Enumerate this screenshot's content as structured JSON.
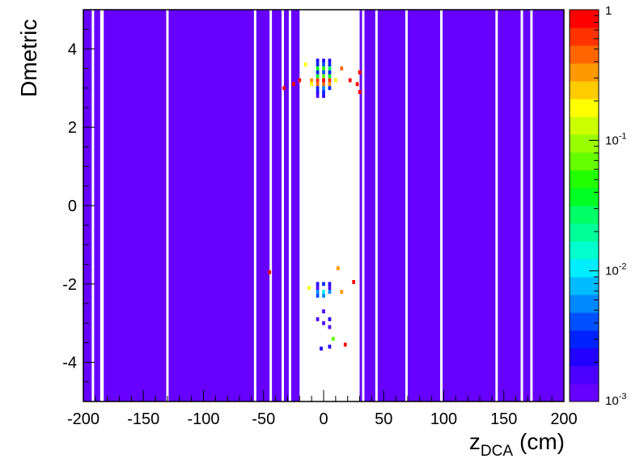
{
  "chart_data": {
    "type": "heatmap",
    "title": "",
    "xlabel": "z",
    "xlabel_sub": "DCA",
    "xlabel_unit": "(cm)",
    "ylabel": "Dmetric",
    "xlim": [
      -200,
      200
    ],
    "ylim": [
      -5,
      5
    ],
    "x_ticks": [
      -200,
      -150,
      -100,
      -50,
      0,
      50,
      100,
      150,
      200
    ],
    "y_ticks": [
      -4,
      -2,
      0,
      2,
      4
    ],
    "grid": false,
    "z_scale": "log",
    "zlim": [
      0.001,
      1
    ],
    "colorbar_labels": [
      {
        "base": "10",
        "exp": "-3",
        "value": 0.001
      },
      {
        "base": "10",
        "exp": "-2",
        "value": 0.01
      },
      {
        "base": "10",
        "exp": "-1",
        "value": 0.1
      },
      {
        "base": "1",
        "exp": "",
        "value": 1
      }
    ],
    "colorbar_colors": [
      "#6600ff",
      "#4a00ff",
      "#2200ff",
      "#0022ff",
      "#0050ff",
      "#0088ff",
      "#00bbff",
      "#00eeff",
      "#00ffcc",
      "#00ff99",
      "#00ff66",
      "#00ff22",
      "#22ff00",
      "#66ff00",
      "#99ff00",
      "#ccff00",
      "#ffff00",
      "#ffcc00",
      "#ff9900",
      "#ff6600",
      "#ff3300",
      "#ff0000"
    ],
    "background_fill": {
      "value": 0.001,
      "color": "#6600ff",
      "x_range": [
        -200,
        200
      ],
      "y_range": [
        -5,
        5
      ]
    },
    "empty_bands": [
      {
        "x0": -193,
        "x1": -191
      },
      {
        "x0": -186,
        "x1": -183
      },
      {
        "x0": -131,
        "x1": -129
      },
      {
        "x0": -58,
        "x1": -56
      },
      {
        "x0": -45,
        "x1": -43
      },
      {
        "x0": -35,
        "x1": -33
      },
      {
        "x0": -29,
        "x1": -27
      },
      {
        "x0": -20,
        "x1": 30
      },
      {
        "x0": 32,
        "x1": 34
      },
      {
        "x0": 43,
        "x1": 45
      },
      {
        "x0": 68,
        "x1": 70
      },
      {
        "x0": 97,
        "x1": 99
      },
      {
        "x0": 143,
        "x1": 145
      },
      {
        "x0": 164,
        "x1": 166
      },
      {
        "x0": 172,
        "x1": 174
      }
    ],
    "cells": [
      {
        "x": -5,
        "y": 3.7,
        "v": 0.002
      },
      {
        "x": 0,
        "y": 3.7,
        "v": 0.002
      },
      {
        "x": 5,
        "y": 3.7,
        "v": 0.002
      },
      {
        "x": -5,
        "y": 3.6,
        "v": 0.003
      },
      {
        "x": 0,
        "y": 3.6,
        "v": 0.004
      },
      {
        "x": 5,
        "y": 3.6,
        "v": 0.003
      },
      {
        "x": -5,
        "y": 3.5,
        "v": 0.04
      },
      {
        "x": 0,
        "y": 3.5,
        "v": 0.05
      },
      {
        "x": 5,
        "y": 3.5,
        "v": 0.03
      },
      {
        "x": -5,
        "y": 3.4,
        "v": 0.003
      },
      {
        "x": 0,
        "y": 3.4,
        "v": 0.004
      },
      {
        "x": 5,
        "y": 3.4,
        "v": 0.003
      },
      {
        "x": -5,
        "y": 3.3,
        "v": 0.04
      },
      {
        "x": 0,
        "y": 3.3,
        "v": 0.06
      },
      {
        "x": 5,
        "y": 3.3,
        "v": 0.04
      },
      {
        "x": -10,
        "y": 3.2,
        "v": 0.3
      },
      {
        "x": -5,
        "y": 3.2,
        "v": 0.6
      },
      {
        "x": 0,
        "y": 3.2,
        "v": 0.9
      },
      {
        "x": 5,
        "y": 3.2,
        "v": 0.6
      },
      {
        "x": 10,
        "y": 3.2,
        "v": 0.2
      },
      {
        "x": -10,
        "y": 3.1,
        "v": 0.2
      },
      {
        "x": -5,
        "y": 3.1,
        "v": 0.4
      },
      {
        "x": 0,
        "y": 3.1,
        "v": 0.5
      },
      {
        "x": 5,
        "y": 3.1,
        "v": 0.3
      },
      {
        "x": -5,
        "y": 3.0,
        "v": 0.003
      },
      {
        "x": 0,
        "y": 3.0,
        "v": 0.005
      },
      {
        "x": 5,
        "y": 3.0,
        "v": 0.003
      },
      {
        "x": -5,
        "y": 2.9,
        "v": 0.002
      },
      {
        "x": 0,
        "y": 2.9,
        "v": 0.003
      },
      {
        "x": -5,
        "y": 2.8,
        "v": 0.0015
      },
      {
        "x": 0,
        "y": 2.8,
        "v": 0.002
      },
      {
        "x": -20,
        "y": 3.2,
        "v": 0.9
      },
      {
        "x": -25,
        "y": 3.1,
        "v": 1.0
      },
      {
        "x": -33,
        "y": 3.0,
        "v": 1.0
      },
      {
        "x": 22,
        "y": 3.2,
        "v": 0.9
      },
      {
        "x": 28,
        "y": 3.1,
        "v": 1.0
      },
      {
        "x": 30,
        "y": 2.9,
        "v": 1.0
      },
      {
        "x": 30,
        "y": 3.4,
        "v": 1.0
      },
      {
        "x": -15,
        "y": 3.6,
        "v": 0.2
      },
      {
        "x": 15,
        "y": 3.5,
        "v": 0.4
      },
      {
        "x": -5,
        "y": -2.0,
        "v": 0.002
      },
      {
        "x": 0,
        "y": -2.0,
        "v": 0.003
      },
      {
        "x": 5,
        "y": -2.0,
        "v": 0.002
      },
      {
        "x": -5,
        "y": -2.1,
        "v": 0.0015
      },
      {
        "x": 5,
        "y": -2.1,
        "v": 0.0015
      },
      {
        "x": -5,
        "y": -2.2,
        "v": 0.006
      },
      {
        "x": 0,
        "y": -2.2,
        "v": 0.01
      },
      {
        "x": 5,
        "y": -2.2,
        "v": 0.006
      },
      {
        "x": -5,
        "y": -2.3,
        "v": 0.004
      },
      {
        "x": 0,
        "y": -2.3,
        "v": 0.005
      },
      {
        "x": 12,
        "y": -1.6,
        "v": 0.3
      },
      {
        "x": -12,
        "y": -2.1,
        "v": 0.2
      },
      {
        "x": 15,
        "y": -2.2,
        "v": 0.3
      },
      {
        "x": 25,
        "y": -1.95,
        "v": 1.0
      },
      {
        "x": -45,
        "y": -1.7,
        "v": 1.0
      },
      {
        "x": 0,
        "y": -2.7,
        "v": 0.0015
      },
      {
        "x": -5,
        "y": -2.9,
        "v": 0.0015
      },
      {
        "x": 5,
        "y": -2.9,
        "v": 0.002
      },
      {
        "x": 0,
        "y": -3.0,
        "v": 0.0015
      },
      {
        "x": 5,
        "y": -3.1,
        "v": 0.0015
      },
      {
        "x": 8,
        "y": -3.4,
        "v": 0.06
      },
      {
        "x": 5,
        "y": -3.6,
        "v": 0.002
      },
      {
        "x": 18,
        "y": -3.55,
        "v": 0.8
      },
      {
        "x": -2,
        "y": -3.65,
        "v": 0.002
      }
    ]
  }
}
